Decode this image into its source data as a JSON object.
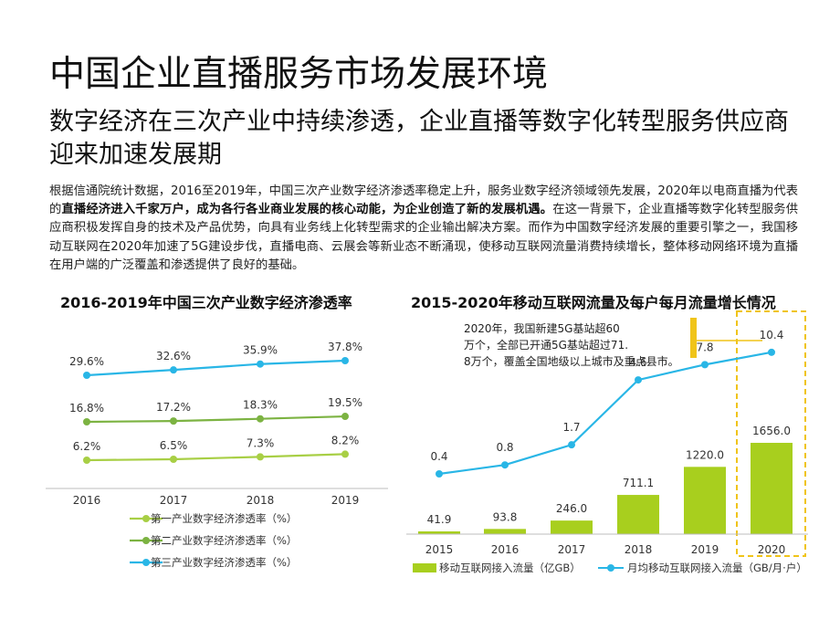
{
  "page": {
    "title": "中国企业直播服务市场发展环境",
    "subtitle": "数字经济在三次产业中持续渗透，企业直播等数字化转型服务供应商迎来加速发展期",
    "paragraph": {
      "p1": "根据信通院统计数据，2016至2019年，中国三次产业数字经济渗透率稳定上升，服务业数字经济领域领先发展，2020年以电商直播为代表的",
      "b1": "直播经济进入千家万户，成为各行各业商业发展的核心动能，为企业创造了新的发展机遇。",
      "p2": "在这一背景下，企业直播等数字化转型服务供应商积极发挥自身的技术及产品优势，向具有业务线上化转型需求的企业输出解决方案。而作为中国数字经济发展的重要引擎之一，我国移动互联网在2020年加速了5G建设步伐，直播电商、云展会等新业态不断涌现，使移动互联网流量消费持续增长，整体移动网络环境为直播在用户端的广泛覆盖和渗透提供了良好的基础。"
    }
  },
  "chart_data": [
    {
      "type": "line",
      "title": "2016-2019年中国三次产业数字经济渗透率",
      "x": [
        "2016",
        "2017",
        "2018",
        "2019"
      ],
      "series": [
        {
          "name": "第一产业数字经济渗透率（%）",
          "values": [
            6.2,
            6.5,
            7.3,
            8.2
          ],
          "labels": [
            "6.2%",
            "6.5%",
            "7.3%",
            "8.2%"
          ],
          "color": "#a8cf45"
        },
        {
          "name": "第二产业数字经济渗透率（%）",
          "values": [
            16.8,
            17.2,
            18.3,
            19.5
          ],
          "labels": [
            "16.8%",
            "17.2%",
            "18.3%",
            "19.5%"
          ],
          "color": "#7cb342"
        },
        {
          "name": "第三产业数字经济渗透率（%）",
          "values": [
            29.6,
            32.6,
            35.9,
            37.8
          ],
          "labels": [
            "29.6%",
            "32.6%",
            "35.9%",
            "37.8%"
          ],
          "color": "#29b6e6"
        }
      ],
      "legend_position": "bottom",
      "grid": false
    },
    {
      "type": "bar+line",
      "title": "2015-2020年移动互联网流量及每户每月流量增长情况",
      "x": [
        "2015",
        "2016",
        "2017",
        "2018",
        "2019",
        "2020"
      ],
      "bar_series": {
        "name": "移动互联网接入流量（亿GB）",
        "values": [
          41.9,
          93.8,
          246.0,
          711.1,
          1220.0,
          1656.0
        ],
        "labels": [
          "41.9",
          "93.8",
          "246.0",
          "711.1",
          "1220.0",
          "1656.0"
        ],
        "color": "#a8cf1e"
      },
      "line_series": {
        "name": "月均移动互联网接入流量（GB/月·户）",
        "values": [
          0.4,
          0.8,
          1.7,
          4.6,
          7.8,
          10.4
        ],
        "labels": [
          "0.4",
          "0.8",
          "1.7",
          "4.6",
          "7.8",
          "10.4"
        ],
        "color": "#29b6e6"
      },
      "annotation": "2020年，我国新建5G基站超60万个，全部已开通5G基站超过71.8万个，覆盖全国地级以上城市及重点县市。",
      "highlight_color": "#f0c419",
      "legend_position": "bottom",
      "grid": false
    }
  ]
}
